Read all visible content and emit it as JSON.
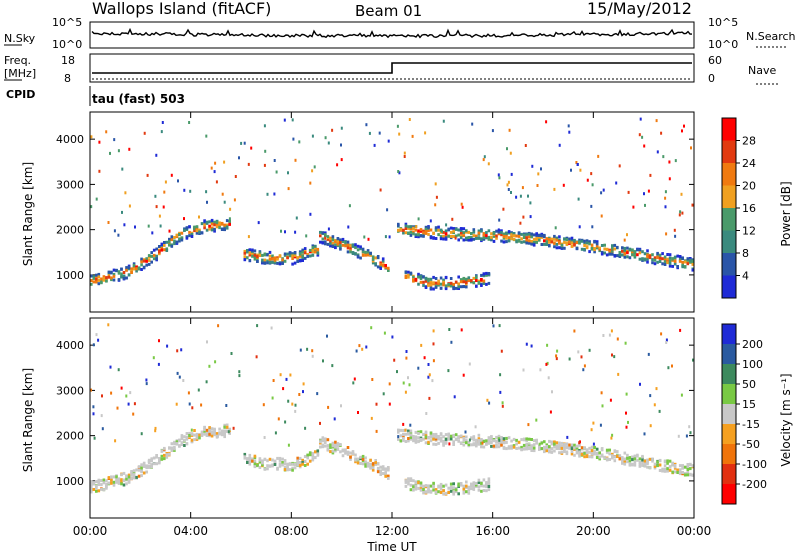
{
  "header": {
    "station": "Wallops Island (fitACF)",
    "beam": "Beam 01",
    "date": "15/May/2012"
  },
  "strips": {
    "noise": {
      "left_label": "N.Sky",
      "right_label": "N.Search",
      "left_ticks": [
        "10^5",
        "10^0"
      ],
      "right_ticks": [
        "10^5",
        "10^0"
      ]
    },
    "freq": {
      "left_label_1": "Freq.",
      "left_label_2": "[MHz]",
      "right_label": "Nave",
      "left_ticks": [
        "18",
        "8"
      ],
      "right_ticks": [
        "60",
        "0"
      ],
      "cpid_label": "CPID",
      "cpid_value": "tau (fast) 503"
    }
  },
  "colors": {
    "power": [
      "#1f2bd6",
      "#2a55a8",
      "#3a8a7e",
      "#4a9a6a",
      "#f0a020",
      "#f07a10",
      "#e23a10",
      "#ff0000"
    ],
    "velocity": [
      "#1f2bd6",
      "#2a5aa0",
      "#3d8a5e",
      "#79c944",
      "#c8c8c8",
      "#f5a020",
      "#f0740a",
      "#e23010",
      "#ff0000"
    ]
  },
  "chart_data": [
    {
      "type": "heatmap",
      "name": "Power",
      "xlabel": "Time UT",
      "ylabel": "Slant Range [km]",
      "xlim_hours": [
        0,
        24
      ],
      "ylim_km": [
        180,
        4600
      ],
      "y_ticks": [
        "1000",
        "2000",
        "3000",
        "4000"
      ],
      "colorbar": {
        "label": "Power [dB]",
        "ticks": [
          "4",
          "8",
          "12",
          "16",
          "20",
          "24",
          "28"
        ]
      },
      "echo_bands": [
        {
          "t": [
            0.0,
            0.5,
            1.5,
            2.5,
            3.5,
            4.5,
            5.5
          ],
          "range_km": [
            900,
            950,
            1100,
            1450,
            1900,
            2100,
            2150
          ]
        },
        {
          "t": [
            6.0,
            7.0,
            8.0,
            9.0
          ],
          "range_km": [
            1500,
            1400,
            1400,
            1600
          ]
        },
        {
          "t": [
            9.0,
            10.0,
            11.0,
            11.8
          ],
          "range_km": [
            1900,
            1700,
            1450,
            1200
          ]
        },
        {
          "t": [
            12.1,
            14.0,
            16.0,
            18.0,
            20.0,
            22.0,
            24.0
          ],
          "range_km": [
            2050,
            1950,
            1900,
            1800,
            1650,
            1450,
            1250
          ]
        },
        {
          "t": [
            12.4,
            13.5,
            14.5,
            15.8
          ],
          "range_km": [
            1000,
            850,
            850,
            950
          ]
        }
      ]
    },
    {
      "type": "heatmap",
      "name": "Velocity",
      "xlabel": "Time UT",
      "ylabel": "Slant Range [km]",
      "xlim_hours": [
        0,
        24
      ],
      "ylim_km": [
        180,
        4600
      ],
      "y_ticks": [
        "1000",
        "2000",
        "3000",
        "4000"
      ],
      "x_ticks": [
        "00:00",
        "04:00",
        "08:00",
        "12:00",
        "16:00",
        "20:00",
        "00:00"
      ],
      "colorbar": {
        "label": "Velocity [m s⁻¹]",
        "ticks": [
          "200",
          "100",
          "50",
          "15",
          "-15",
          "-50",
          "-100",
          "-200"
        ]
      },
      "echo_bands": [
        {
          "t": [
            0.0,
            0.5,
            1.5,
            2.5,
            3.5,
            4.5,
            5.5
          ],
          "range_km": [
            900,
            950,
            1100,
            1450,
            1900,
            2100,
            2150
          ]
        },
        {
          "t": [
            6.0,
            7.0,
            8.0,
            9.0
          ],
          "range_km": [
            1500,
            1400,
            1400,
            1600
          ]
        },
        {
          "t": [
            9.0,
            10.0,
            11.0,
            11.8
          ],
          "range_km": [
            1900,
            1700,
            1450,
            1200
          ]
        },
        {
          "t": [
            12.1,
            14.0,
            16.0,
            18.0,
            20.0,
            22.0,
            24.0
          ],
          "range_km": [
            2050,
            1950,
            1900,
            1800,
            1650,
            1450,
            1250
          ]
        },
        {
          "t": [
            12.4,
            13.5,
            14.5,
            15.8
          ],
          "range_km": [
            1000,
            850,
            850,
            950
          ]
        }
      ]
    }
  ]
}
